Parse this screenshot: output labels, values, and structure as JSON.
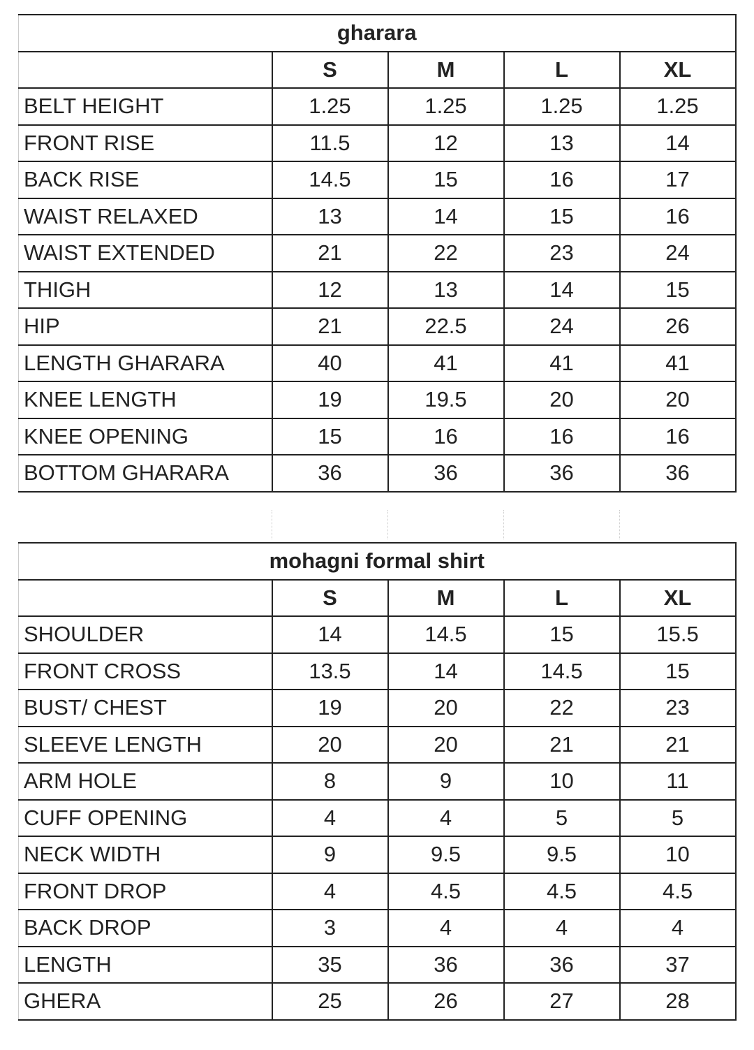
{
  "tables": [
    {
      "title": "gharara",
      "sizes": [
        "S",
        "M",
        "L",
        "XL"
      ],
      "rows": [
        {
          "label": "BELT HEIGHT",
          "values": [
            "1.25",
            "1.25",
            "1.25",
            "1.25"
          ]
        },
        {
          "label": "FRONT RISE",
          "values": [
            "11.5",
            "12",
            "13",
            "14"
          ]
        },
        {
          "label": "BACK RISE",
          "values": [
            "14.5",
            "15",
            "16",
            "17"
          ]
        },
        {
          "label": "WAIST RELAXED",
          "values": [
            "13",
            "14",
            "15",
            "16"
          ]
        },
        {
          "label": "WAIST EXTENDED",
          "values": [
            "21",
            "22",
            "23",
            "24"
          ]
        },
        {
          "label": "THIGH",
          "values": [
            "12",
            "13",
            "14",
            "15"
          ]
        },
        {
          "label": "HIP",
          "values": [
            "21",
            "22.5",
            "24",
            "26"
          ]
        },
        {
          "label": "LENGTH GHARARA",
          "values": [
            "40",
            "41",
            "41",
            "41"
          ]
        },
        {
          "label": "KNEE LENGTH",
          "values": [
            "19",
            "19.5",
            "20",
            "20"
          ]
        },
        {
          "label": "KNEE OPENING",
          "values": [
            "15",
            "16",
            "16",
            "16"
          ]
        },
        {
          "label": "BOTTOM GHARARA",
          "values": [
            "36",
            "36",
            "36",
            "36"
          ]
        }
      ]
    },
    {
      "title": "mohagni formal shirt",
      "sizes": [
        "S",
        "M",
        "L",
        "XL"
      ],
      "rows": [
        {
          "label": "SHOULDER",
          "values": [
            "14",
            "14.5",
            "15",
            "15.5"
          ]
        },
        {
          "label": "FRONT CROSS",
          "values": [
            "13.5",
            "14",
            "14.5",
            "15"
          ]
        },
        {
          "label": "BUST/ CHEST",
          "values": [
            "19",
            "20",
            "22",
            "23"
          ]
        },
        {
          "label": "SLEEVE LENGTH",
          "values": [
            "20",
            "20",
            "21",
            "21"
          ]
        },
        {
          "label": "ARM HOLE",
          "values": [
            "8",
            "9",
            "10",
            "11"
          ]
        },
        {
          "label": "CUFF OPENING",
          "values": [
            "4",
            "4",
            "5",
            "5"
          ]
        },
        {
          "label": "NECK WIDTH",
          "values": [
            "9",
            "9.5",
            "9.5",
            "10"
          ]
        },
        {
          "label": "FRONT DROP",
          "values": [
            "4",
            "4.5",
            "4.5",
            "4.5"
          ]
        },
        {
          "label": "BACK DROP",
          "values": [
            "3",
            "4",
            "4",
            "4"
          ]
        },
        {
          "label": "LENGTH",
          "values": [
            "35",
            "36",
            "36",
            "37"
          ]
        },
        {
          "label": "GHERA",
          "values": [
            "25",
            "26",
            "27",
            "28"
          ]
        }
      ]
    }
  ]
}
